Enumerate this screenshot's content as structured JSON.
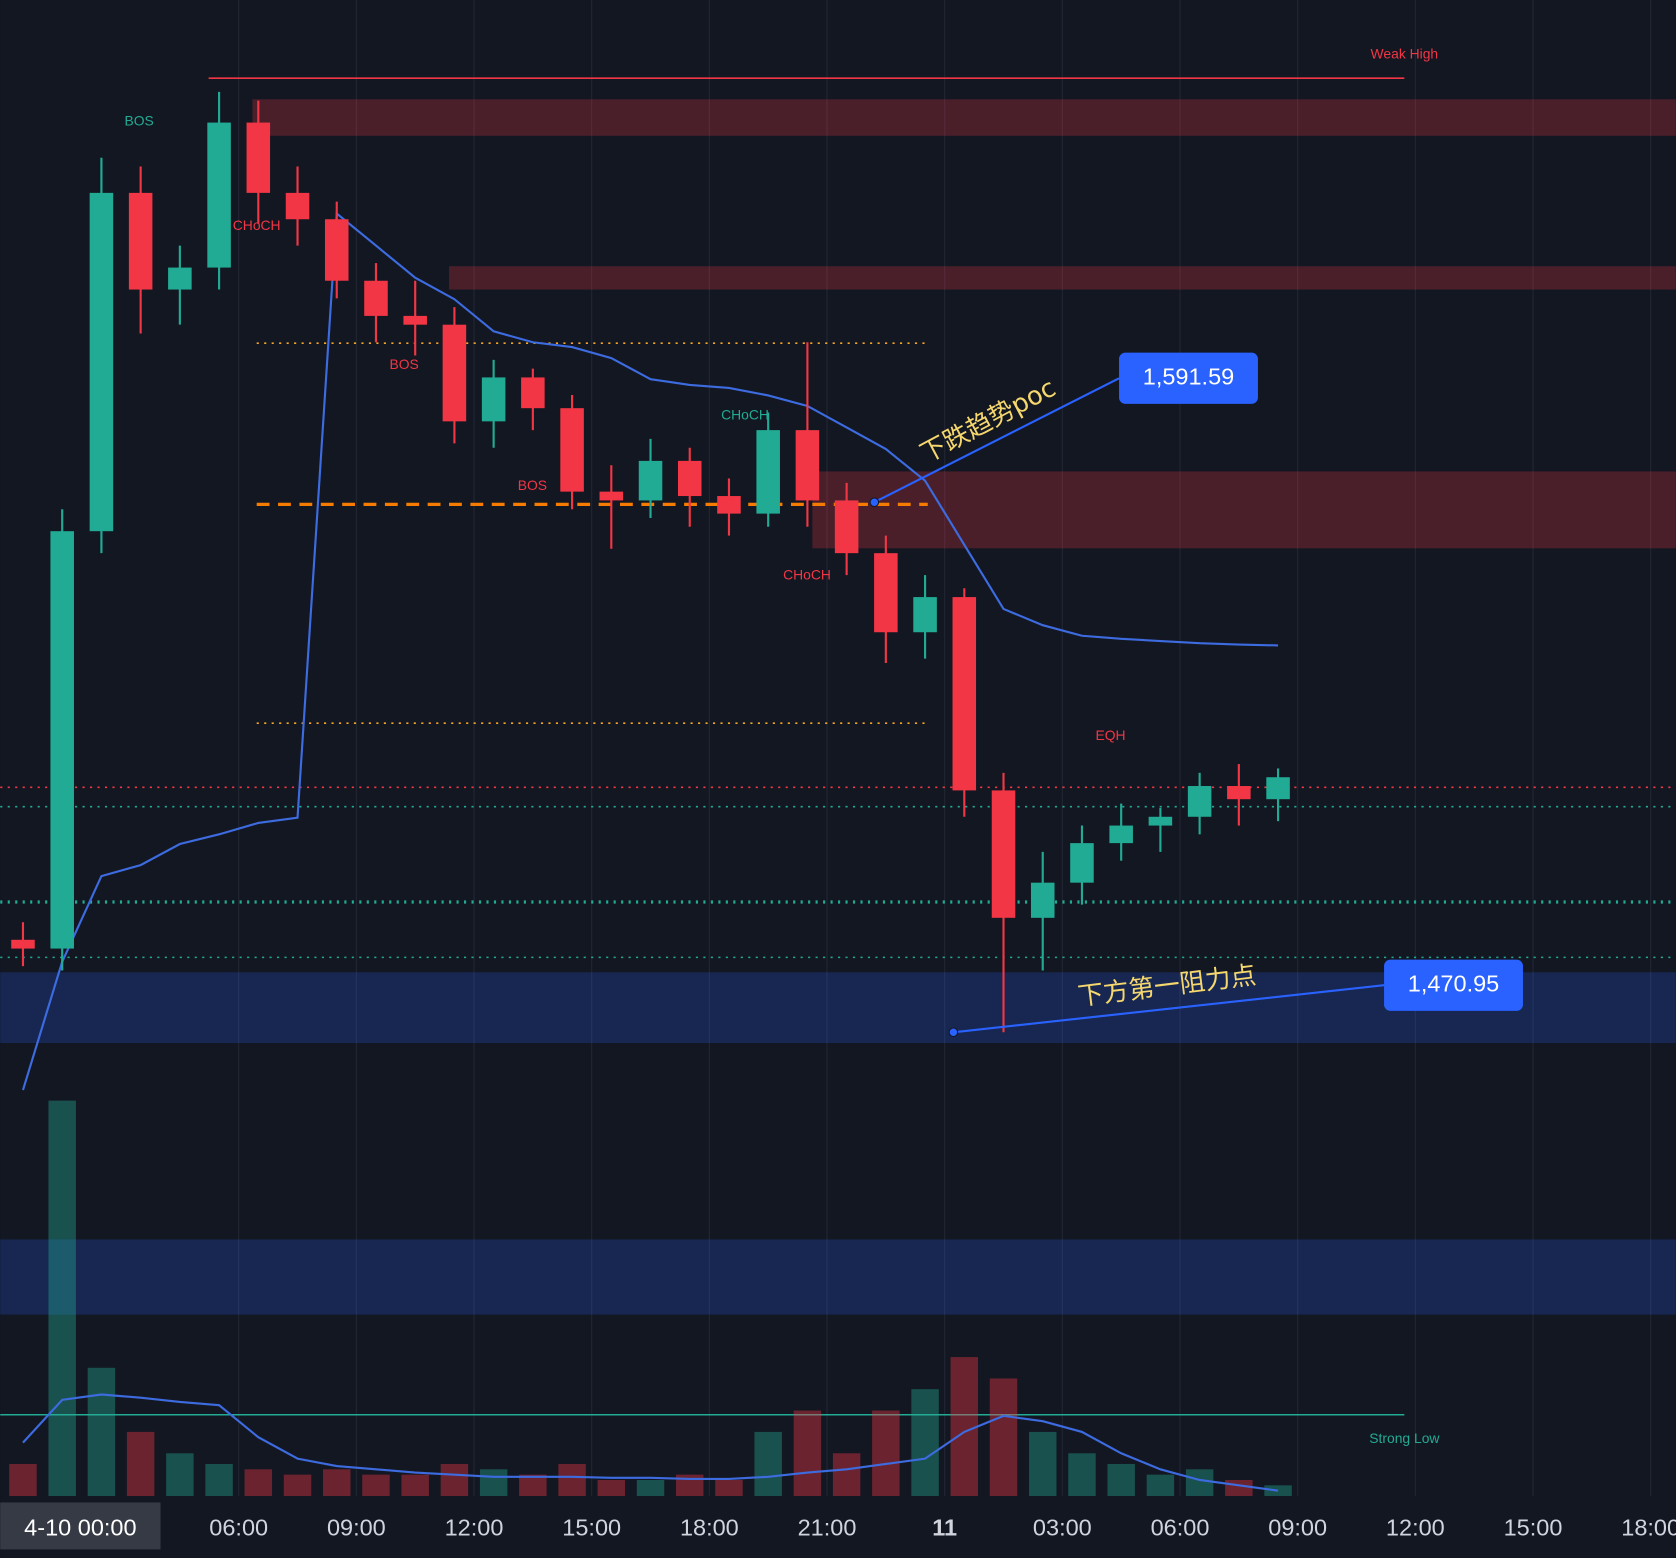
{
  "chart_data": {
    "type": "candlestick",
    "x": [
      0,
      1,
      2,
      3,
      4,
      5,
      6,
      7,
      8,
      9,
      10,
      11,
      12,
      13,
      14,
      15,
      16,
      17,
      18,
      19,
      20,
      21,
      22,
      23,
      24,
      25,
      26,
      27,
      28,
      29,
      30,
      31,
      32
    ],
    "open": [
      1492,
      1490,
      1585,
      1662,
      1640,
      1645,
      1678,
      1662,
      1656,
      1642,
      1634,
      1632,
      1610,
      1620,
      1613,
      1594,
      1592,
      1601,
      1593,
      1589,
      1608,
      1592,
      1580,
      1562,
      1570,
      1526,
      1497,
      1505,
      1514,
      1518,
      1520,
      1527,
      1524
    ],
    "high": [
      1496,
      1590,
      1670,
      1668,
      1650,
      1685,
      1683,
      1668,
      1660,
      1646,
      1642,
      1636,
      1624,
      1622,
      1616,
      1600,
      1606,
      1604,
      1597,
      1612,
      1628,
      1596,
      1584,
      1575,
      1572,
      1530,
      1512,
      1518,
      1523,
      1522,
      1530,
      1532,
      1531
    ],
    "low": [
      1486,
      1485,
      1580,
      1630,
      1632,
      1640,
      1655,
      1650,
      1638,
      1628,
      1625,
      1605,
      1604,
      1608,
      1590,
      1581,
      1588,
      1586,
      1584,
      1586,
      1586,
      1575,
      1555,
      1556,
      1520,
      1470.95,
      1485,
      1500,
      1510,
      1512,
      1516,
      1518,
      1519
    ],
    "close": [
      1490,
      1585,
      1662,
      1640,
      1645,
      1678,
      1662,
      1656,
      1642,
      1634,
      1632,
      1610,
      1620,
      1613,
      1594,
      1592,
      1601,
      1593,
      1589,
      1608,
      1592,
      1580,
      1562,
      1570,
      1526,
      1497,
      1505,
      1514,
      1518,
      1520,
      1527,
      1524,
      1529
    ],
    "volume": [
      30,
      370,
      120,
      60,
      40,
      30,
      25,
      20,
      25,
      20,
      20,
      30,
      25,
      20,
      30,
      15,
      15,
      20,
      15,
      60,
      80,
      40,
      80,
      100,
      130,
      110,
      60,
      40,
      30,
      20,
      25,
      15,
      10
    ],
    "volume_ma": [
      50,
      90,
      95,
      92,
      88,
      85,
      55,
      35,
      28,
      25,
      22,
      20,
      18,
      18,
      18,
      17,
      17,
      16,
      16,
      18,
      22,
      25,
      30,
      35,
      60,
      75,
      70,
      60,
      40,
      25,
      15,
      10,
      5
    ],
    "vwap": [
      1457.8,
      1487,
      1506.5,
      1509,
      1513.8,
      1516,
      1518.6,
      1519.8,
      1657.3,
      1650,
      1642.7,
      1637.8,
      1630.5,
      1628,
      1626.9,
      1624.4,
      1619.6,
      1618.3,
      1617.6,
      1615.9,
      1613.5,
      1608.6,
      1603.7,
      1596.5,
      1581.9,
      1567.3,
      1563.6,
      1561.2,
      1560.5,
      1560,
      1559.5,
      1559.2,
      1559
    ],
    "xlim": [
      -0.08,
      42.64
    ],
    "ylim": [
      1365.4,
      1705.9
    ],
    "xticks": [
      {
        "value": 6,
        "label": "06:00"
      },
      {
        "value": 9,
        "label": "09:00"
      },
      {
        "value": 12,
        "label": "12:00"
      },
      {
        "value": 15,
        "label": "15:00"
      },
      {
        "value": 18,
        "label": "18:00"
      },
      {
        "value": 21,
        "label": "21:00"
      },
      {
        "value": 24,
        "label": "11"
      },
      {
        "value": 27,
        "label": "03:00"
      },
      {
        "value": 30,
        "label": "06:00"
      },
      {
        "value": 33,
        "label": "09:00"
      },
      {
        "value": 36,
        "label": "12:00"
      },
      {
        "value": 39,
        "label": "15:00"
      },
      {
        "value": 42,
        "label": "18:00"
      }
    ],
    "cursor_label": "4-10  00:00",
    "levels": [
      {
        "label": "Weak High",
        "value": 1688.1,
        "color": "#f23645"
      },
      {
        "label": "Strong Low",
        "value": 1383.9,
        "color": "#22ab94"
      }
    ],
    "zones": [
      {
        "range": [
          1675.0,
          1683.3
        ],
        "color": "#f23645"
      },
      {
        "range": [
          1640.0,
          1645.3
        ],
        "color": "#f23645"
      },
      {
        "range": [
          1581.1,
          1598.6
        ],
        "color": "#f23645"
      },
      {
        "range": [
          1468.5,
          1484.6
        ],
        "color": "#2962ff"
      },
      {
        "range": [
          1406.7,
          1423.8
        ],
        "color": "#2962ff"
      }
    ],
    "dotted_levels": [
      {
        "value": 1627.8,
        "color": "#f5a623"
      },
      {
        "value": 1541.3,
        "color": "#f5a623"
      },
      {
        "value": 1591.1,
        "color": "#f57c00"
      },
      {
        "value": 1500.6,
        "color": "#22ab94"
      },
      {
        "value": 1488.0,
        "color": "#22ab94"
      },
      {
        "value": 1522.3,
        "color": "#22ab94"
      },
      {
        "value": 1526.7,
        "color": "#f23645"
      }
    ],
    "structure_labels": [
      "BOS",
      "CHoCH",
      "BOS",
      "CHoCH",
      "BOS",
      "CHoCH",
      "EQH"
    ],
    "annotations": [
      {
        "value": 1591.59,
        "label": "1,591.59",
        "text": "下跌趋势poc"
      },
      {
        "value": 1470.95,
        "label": "1,470.95",
        "text": "下方第一阻力点"
      }
    ],
    "colors": {
      "up": "#22ab94",
      "down": "#f23645",
      "vwap": "#3d6be0",
      "volume_ma": "#3d6be0",
      "annotation": "#2962ff"
    }
  }
}
